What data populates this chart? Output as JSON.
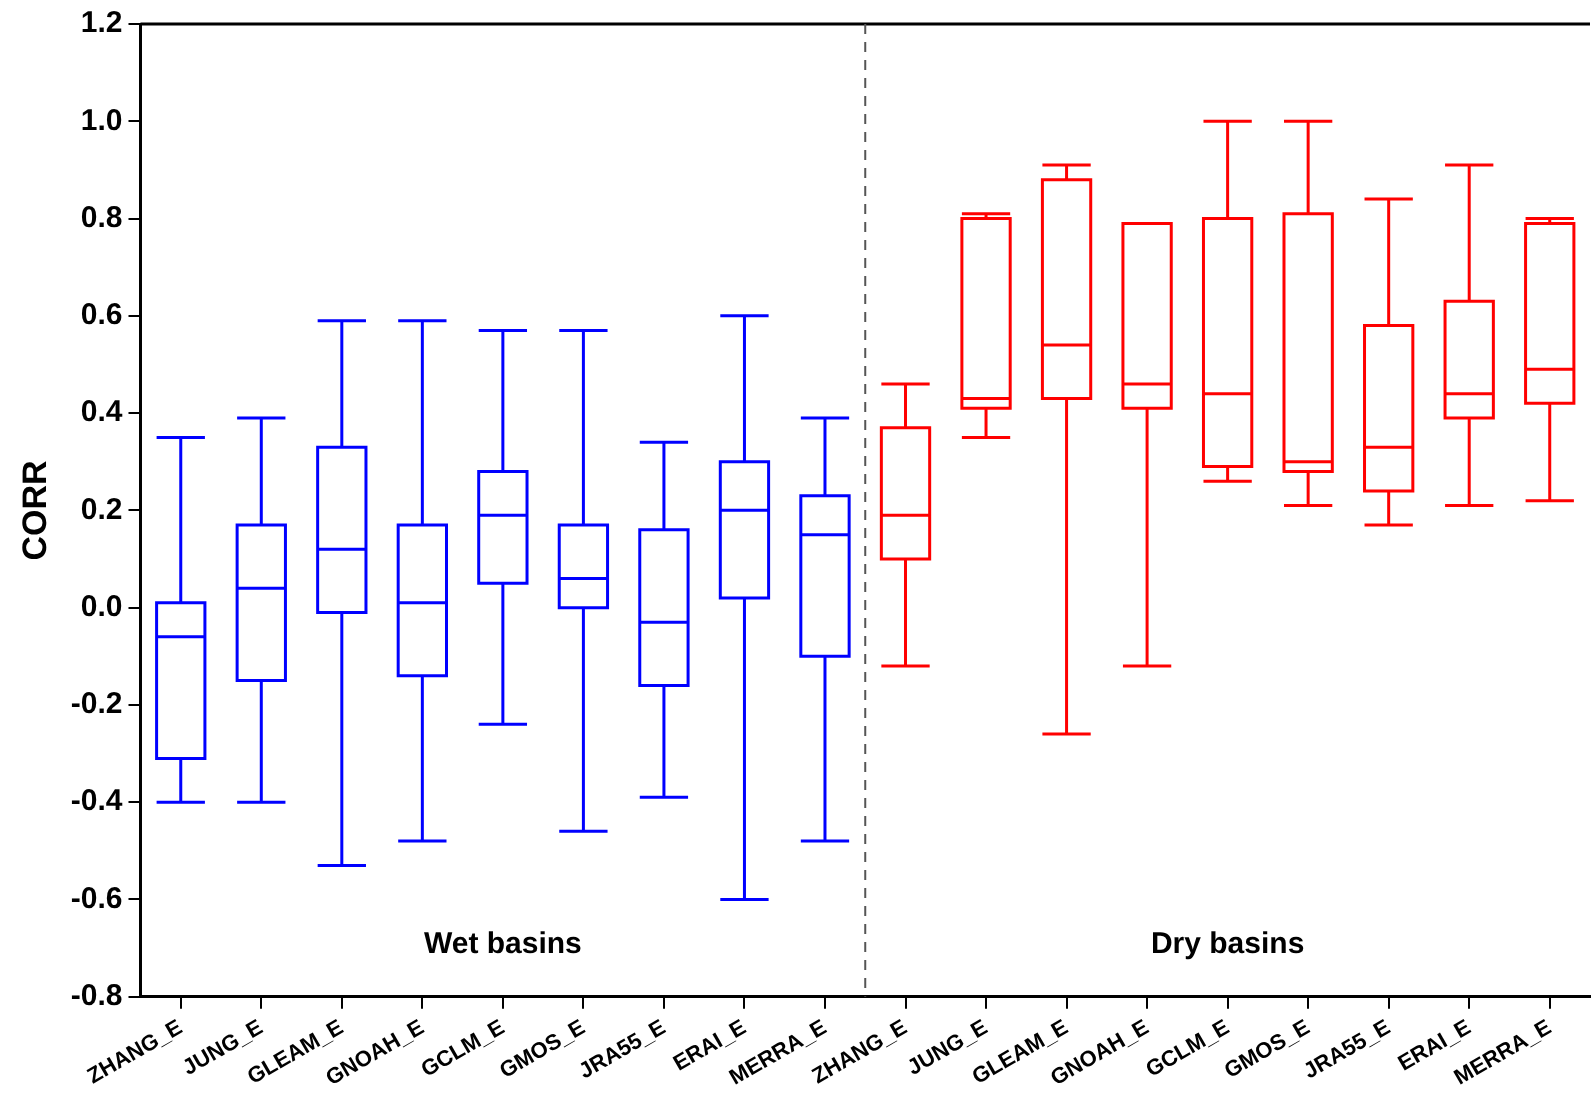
{
  "chart_data": {
    "type": "box",
    "ylabel": "CORR",
    "categories": [
      "ZHANG_E",
      "JUNG_E",
      "GLEAM_E",
      "GNOAH_E",
      "GCLM_E",
      "GMOS_E",
      "JRA55_E",
      "ERAI_E",
      "MERRA_E",
      "ZHANG_E",
      "JUNG_E",
      "GLEAM_E",
      "GNOAH_E",
      "GCLM_E",
      "GMOS_E",
      "JRA55_E",
      "ERAI_E",
      "MERRA_E"
    ],
    "ylim": [
      -0.8,
      1.2
    ],
    "yticks": [
      {
        "value": -0.8,
        "label": "-0.8"
      },
      {
        "value": -0.6,
        "label": "-0.6"
      },
      {
        "value": -0.4,
        "label": "-0.4"
      },
      {
        "value": -0.2,
        "label": "-0.2"
      },
      {
        "value": 0,
        "label": "0.0"
      },
      {
        "value": 0.2,
        "label": "0.2"
      },
      {
        "value": 0.4,
        "label": "0.4"
      },
      {
        "value": 0.6,
        "label": "0.6"
      },
      {
        "value": 0.8,
        "label": "0.8"
      },
      {
        "value": 1,
        "label": "1.0"
      },
      {
        "value": 1.2,
        "label": "1.2"
      }
    ],
    "series": [
      {
        "color": "#0000ff",
        "boxes": [
          {
            "low": -0.4,
            "q1": -0.31,
            "median": -0.06,
            "q3": 0.01,
            "high": 0.35
          },
          {
            "low": -0.4,
            "q1": -0.15,
            "median": 0.04,
            "q3": 0.17,
            "high": 0.39
          },
          {
            "low": -0.53,
            "q1": -0.01,
            "median": 0.12,
            "q3": 0.33,
            "high": 0.59
          },
          {
            "low": -0.48,
            "q1": -0.14,
            "median": 0.01,
            "q3": 0.17,
            "high": 0.59
          },
          {
            "low": -0.24,
            "q1": 0.05,
            "median": 0.19,
            "q3": 0.28,
            "high": 0.57
          },
          {
            "low": -0.46,
            "q1": 0,
            "median": 0.06,
            "q3": 0.17,
            "high": 0.57
          },
          {
            "low": -0.39,
            "q1": -0.16,
            "median": -0.03,
            "q3": 0.16,
            "high": 0.34
          },
          {
            "low": -0.6,
            "q1": 0.02,
            "median": 0.2,
            "q3": 0.3,
            "high": 0.6
          },
          {
            "low": -0.48,
            "q1": -0.1,
            "median": 0.15,
            "q3": 0.23,
            "high": 0.39
          },
          null,
          null,
          null,
          null,
          null,
          null,
          null,
          null,
          null
        ]
      },
      {
        "color": "#ff0000",
        "boxes": [
          null,
          null,
          null,
          null,
          null,
          null,
          null,
          null,
          null,
          {
            "low": -0.12,
            "q1": 0.1,
            "median": 0.19,
            "q3": 0.37,
            "high": 0.46
          },
          {
            "low": 0.35,
            "q1": 0.41,
            "median": 0.43,
            "q3": 0.8,
            "high": 0.81
          },
          {
            "low": -0.26,
            "q1": 0.43,
            "median": 0.54,
            "q3": 0.88,
            "high": 0.91
          },
          {
            "low": -0.12,
            "q1": 0.41,
            "median": 0.46,
            "q3": 0.79,
            "high": 0.79
          },
          {
            "low": 0.26,
            "q1": 0.29,
            "median": 0.44,
            "q3": 0.8,
            "high": 1
          },
          {
            "low": 0.21,
            "q1": 0.28,
            "median": 0.3,
            "q3": 0.81,
            "high": 1
          },
          {
            "low": 0.17,
            "q1": 0.24,
            "median": 0.33,
            "q3": 0.58,
            "high": 0.84
          },
          {
            "low": 0.21,
            "q1": 0.39,
            "median": 0.44,
            "q3": 0.63,
            "high": 0.91
          },
          {
            "low": 0.22,
            "q1": 0.42,
            "median": 0.49,
            "q3": 0.79,
            "high": 0.8
          }
        ]
      }
    ],
    "annotations": [
      "Wet basins",
      "Dry basins"
    ]
  }
}
